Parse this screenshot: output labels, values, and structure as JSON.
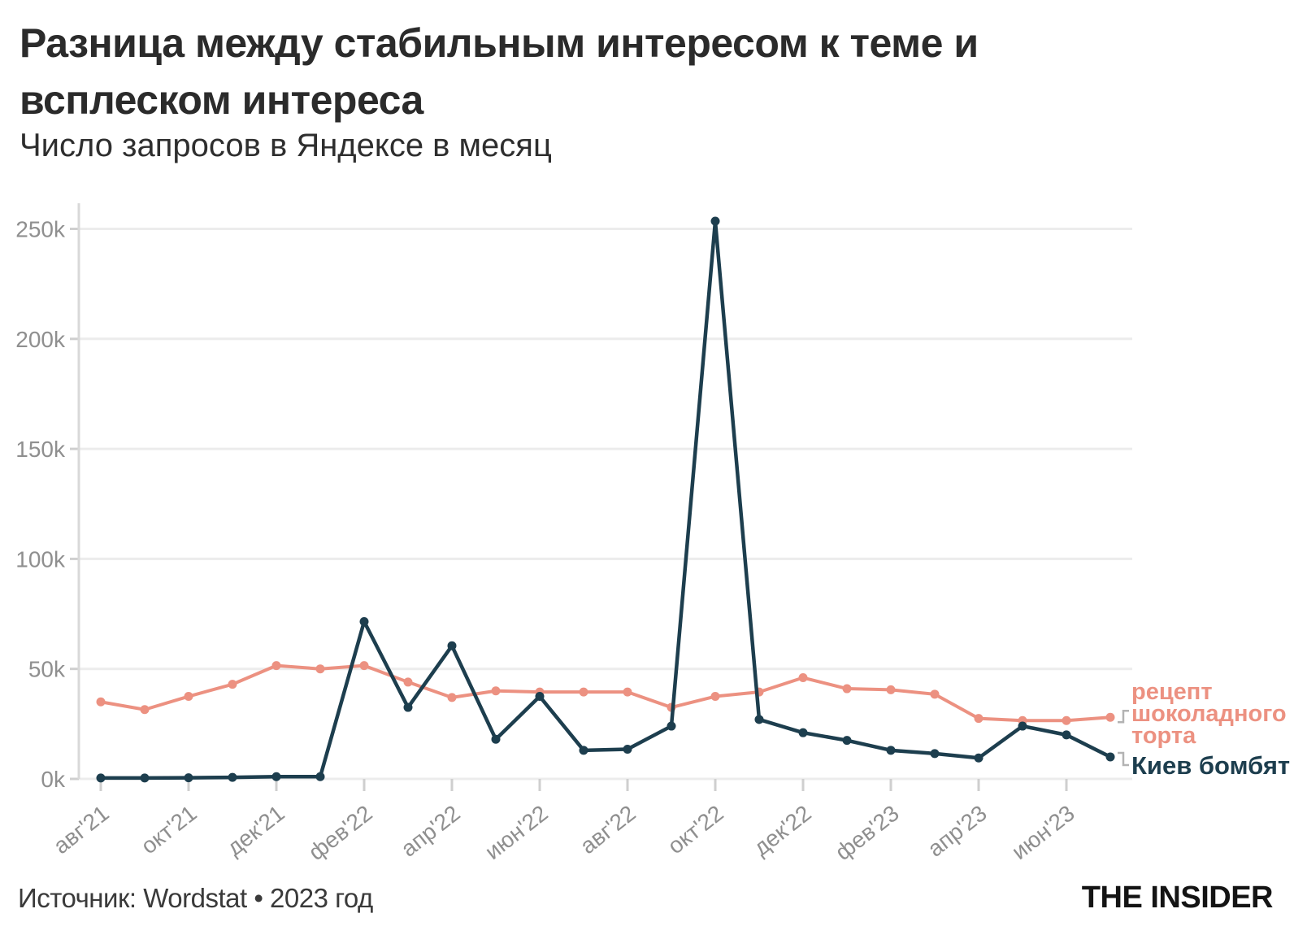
{
  "header": {
    "title": "Разница между стабильным интересом к теме и\nвсплеском интереса",
    "subtitle": "Число запросов в Яндексе в месяц"
  },
  "legend": {
    "cake": "рецепт\nшоколадного\nторта",
    "kyiv": "Киев бомбят"
  },
  "footer": {
    "source": "Источник: Wordstat • 2023 год",
    "logo": "THE INSIDER"
  },
  "colors": {
    "cake": "#EC9181",
    "kyiv": "#1D3E4E",
    "grid": "#ECECEC",
    "axis": "#D9D9D9",
    "tick": "#CFCFCF",
    "axis_label": "#8F8F8F",
    "connector": "#B3B3B3"
  },
  "chart_data": {
    "type": "line",
    "title": "Разница между стабильным интересом к теме и всплеском интереса",
    "subtitle": "Число запросов в Яндексе в месяц",
    "x_unit": "month",
    "months": [
      "авг'21",
      "сен'21",
      "окт'21",
      "ноя'21",
      "дек'21",
      "янв'22",
      "фев'22",
      "мар'22",
      "апр'22",
      "май'22",
      "июн'22",
      "июл'22",
      "авг'22",
      "сен'22",
      "окт'22",
      "ноя'22",
      "дек'22",
      "янв'23",
      "фев'23",
      "мар'23",
      "апр'23",
      "май'23",
      "июн'23",
      "июл'23"
    ],
    "x_tick_labels": [
      "авг'21",
      "окт'21",
      "дек'21",
      "фев'22",
      "апр'22",
      "июн'22",
      "авг'22",
      "окт'22",
      "дек'22",
      "фев'23",
      "апр'23",
      "июн'23"
    ],
    "y_tick_labels": [
      "0k",
      "50k",
      "100k",
      "150k",
      "200k",
      "250k"
    ],
    "y_ticks_thousands": [
      0,
      50,
      100,
      150,
      200,
      250
    ],
    "ylim_thousands": [
      0,
      262
    ],
    "grid": "horizontal",
    "legend_position": "right-of-last-point",
    "series": [
      {
        "name": "рецепт шоколадного торта",
        "color": "#EC9181",
        "values_thousands": [
          35,
          31.5,
          37.5,
          43,
          51.5,
          50,
          51.5,
          44,
          37,
          40,
          39.5,
          39.5,
          39.5,
          32.5,
          37.5,
          39.5,
          46,
          41,
          40.5,
          38.5,
          27.5,
          26.5,
          26.5,
          28
        ]
      },
      {
        "name": "Киев бомбят",
        "color": "#1D3E4E",
        "values_thousands": [
          0.4,
          0.4,
          0.5,
          0.7,
          1,
          1,
          71.5,
          32.5,
          60.5,
          18,
          37.5,
          13,
          13.5,
          24,
          253.5,
          27,
          21,
          17.5,
          13,
          11.5,
          9.5,
          24,
          20,
          10
        ]
      }
    ]
  }
}
